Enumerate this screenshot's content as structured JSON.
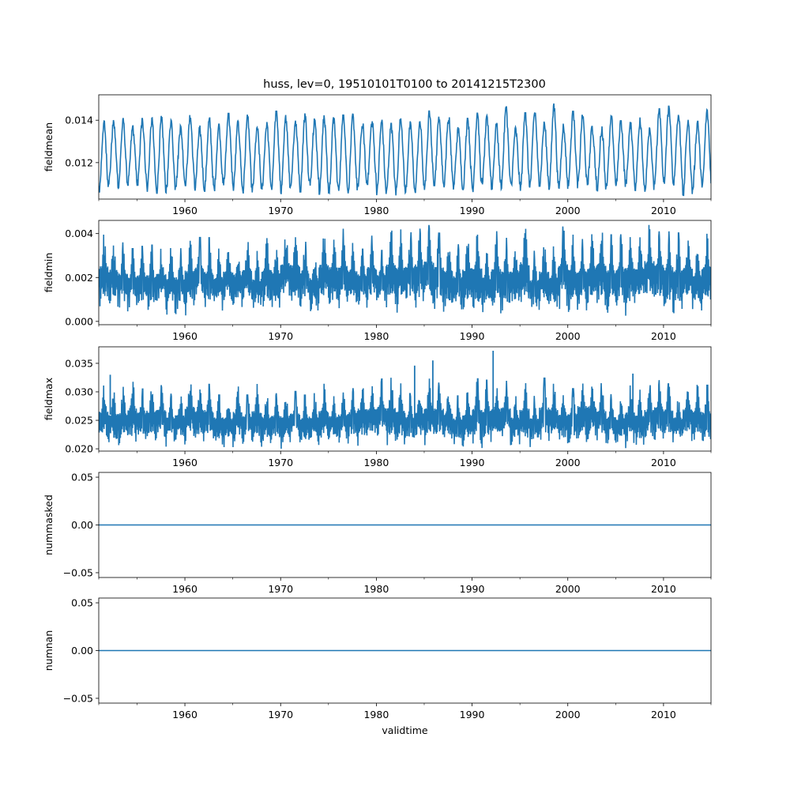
{
  "figure_title": "huss, lev=0, 19510101T0100 to 20141215T2300",
  "series_color": "#1f77b4",
  "chart_data": [
    {
      "type": "line",
      "ylabel": "fieldmean",
      "xlim": [
        1951.0,
        2014.96
      ],
      "ylim": [
        0.01028,
        0.0152
      ],
      "yticks": [
        0.012,
        0.014
      ],
      "ytick_labels": [
        "0.012",
        "0.014"
      ],
      "xticks": [
        1960,
        1970,
        1980,
        1990,
        2000,
        2010
      ],
      "xtick_labels": [
        "1960",
        "1970",
        "1980",
        "1990",
        "2000",
        "2010"
      ],
      "pattern": {
        "kind": "seasonal",
        "base": 0.0122,
        "base_trend_per_year": 4e-06,
        "amp": 0.00125,
        "noise": 0.00022,
        "peak_min": 0.0136,
        "peak_max": 0.015,
        "trough_min": 0.01045,
        "trough_max": 0.011
      },
      "annotations": []
    },
    {
      "type": "line",
      "ylabel": "fieldmin",
      "xlim": [
        1951.0,
        2014.96
      ],
      "ylim": [
        -0.00015,
        0.0046
      ],
      "yticks": [
        0.0,
        0.002,
        0.004
      ],
      "ytick_labels": [
        "0.000",
        "0.002",
        "0.004"
      ],
      "xticks": [
        1960,
        1970,
        1980,
        1990,
        2000,
        2010
      ],
      "xtick_labels": [
        "1960",
        "1970",
        "1980",
        "1990",
        "2000",
        "2010"
      ],
      "pattern": {
        "kind": "band",
        "base": 0.0019,
        "amp": 0.0008,
        "noise": 0.00055,
        "upper": [
          0.0032,
          0.0044
        ],
        "lower": [
          0.0001,
          0.0007
        ]
      },
      "annotations": []
    },
    {
      "type": "line",
      "ylabel": "fieldmax",
      "xlim": [
        1951.0,
        2014.96
      ],
      "ylim": [
        0.0196,
        0.0379
      ],
      "yticks": [
        0.02,
        0.025,
        0.03,
        0.035
      ],
      "ytick_labels": [
        "0.020",
        "0.025",
        "0.030",
        "0.035"
      ],
      "xticks": [
        1960,
        1970,
        1980,
        1990,
        2000,
        2010
      ],
      "xtick_labels": [
        "1960",
        "1970",
        "1980",
        "1990",
        "2000",
        "2010"
      ],
      "pattern": {
        "kind": "band",
        "base": 0.0238,
        "amp": 0.0022,
        "noise": 0.0014,
        "upper": [
          0.0292,
          0.0325
        ],
        "lower": [
          0.0199,
          0.0212
        ]
      },
      "annotations": [
        {
          "x": 1952.2,
          "y": 0.033
        },
        {
          "x": 1984.0,
          "y": 0.0346
        },
        {
          "x": 1985.9,
          "y": 0.0355
        },
        {
          "x": 1992.2,
          "y": 0.0372
        },
        {
          "x": 2006.8,
          "y": 0.0332
        }
      ]
    },
    {
      "type": "line",
      "ylabel": "nummasked",
      "xlim": [
        1951.0,
        2014.96
      ],
      "ylim": [
        -0.055,
        0.055
      ],
      "yticks": [
        -0.05,
        0.0,
        0.05
      ],
      "ytick_labels": [
        "−0.05",
        "0.00",
        "0.05"
      ],
      "xticks": [
        1960,
        1970,
        1980,
        1990,
        2000,
        2010
      ],
      "xtick_labels": [
        "1960",
        "1970",
        "1980",
        "1990",
        "2000",
        "2010"
      ],
      "x": [
        1951.0,
        2014.96
      ],
      "y": [
        0.0,
        0.0
      ]
    },
    {
      "type": "line",
      "ylabel": "numnan",
      "xlabel": "validtime",
      "xlim": [
        1951.0,
        2014.96
      ],
      "ylim": [
        -0.055,
        0.055
      ],
      "yticks": [
        -0.05,
        0.0,
        0.05
      ],
      "ytick_labels": [
        "−0.05",
        "0.00",
        "0.05"
      ],
      "xticks": [
        1960,
        1970,
        1980,
        1990,
        2000,
        2010
      ],
      "xtick_labels": [
        "1960",
        "1970",
        "1980",
        "1990",
        "2000",
        "2010"
      ],
      "x": [
        1951.0,
        2014.96
      ],
      "y": [
        0.0,
        0.0
      ]
    }
  ]
}
